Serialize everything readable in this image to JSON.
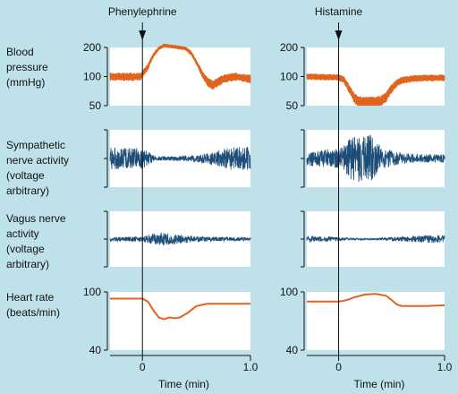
{
  "figure": {
    "background": "#bfe2ea",
    "panel_background": "#ffffff",
    "pressure_color": "#e0641e",
    "nerve_color": "#1c4e78",
    "heart_color": "#e0641e"
  },
  "chart_data": {
    "type": "line",
    "drugs": [
      "Phenylephrine",
      "Histamine"
    ],
    "row_labels": [
      [
        "Blood",
        "pressure",
        "(mmHg)"
      ],
      [
        "Sympathetic",
        "nerve activity",
        "(voltage",
        "arbitrary)"
      ],
      [
        "Vagus nerve",
        "activity",
        "(voltage",
        "arbitrary)"
      ],
      [
        "Heart rate",
        "(beats/min)"
      ]
    ],
    "xlabel": "Time (min)",
    "x_ticks": [
      {
        "value": 0,
        "label": "0"
      },
      {
        "value": 1.0,
        "label": "1.0"
      }
    ],
    "xlim": [
      -0.3,
      1.0
    ],
    "injection_time": 0,
    "pressure_ticks": [
      {
        "value": 200,
        "label": "200"
      },
      {
        "value": 100,
        "label": "100"
      },
      {
        "value": 50,
        "label": "50"
      }
    ],
    "pressure_ylim": [
      50,
      200
    ],
    "pressure_scale": "log",
    "heart_rate_ticks": [
      {
        "value": 100,
        "label": "100"
      },
      {
        "value": 40,
        "label": "40"
      }
    ],
    "heart_rate_ylim": [
      40,
      100
    ],
    "panels": [
      {
        "drug": "Phenylephrine",
        "blood_pressure": [
          [
            -0.3,
            100
          ],
          [
            -0.02,
            100
          ],
          [
            0.05,
            125
          ],
          [
            0.1,
            165
          ],
          [
            0.15,
            195
          ],
          [
            0.2,
            210
          ],
          [
            0.3,
            203
          ],
          [
            0.4,
            195
          ],
          [
            0.45,
            175
          ],
          [
            0.5,
            140
          ],
          [
            0.55,
            108
          ],
          [
            0.6,
            88
          ],
          [
            0.65,
            82
          ],
          [
            0.75,
            95
          ],
          [
            0.85,
            100
          ],
          [
            1.0,
            95
          ]
        ],
        "blood_pressure_band": 10,
        "sympathetic_activity": [
          [
            -0.3,
            0.42
          ],
          [
            0,
            0.38
          ],
          [
            0.05,
            0.28
          ],
          [
            0.1,
            0.12
          ],
          [
            0.15,
            0.08
          ],
          [
            0.3,
            0.08
          ],
          [
            0.4,
            0.12
          ],
          [
            0.5,
            0.12
          ],
          [
            0.6,
            0.2
          ],
          [
            0.7,
            0.3
          ],
          [
            0.8,
            0.42
          ],
          [
            1.0,
            0.45
          ]
        ],
        "vagus_activity": [
          [
            -0.3,
            0.08
          ],
          [
            0,
            0.1
          ],
          [
            0.05,
            0.16
          ],
          [
            0.1,
            0.22
          ],
          [
            0.2,
            0.24
          ],
          [
            0.3,
            0.2
          ],
          [
            0.4,
            0.14
          ],
          [
            0.5,
            0.12
          ],
          [
            0.6,
            0.1
          ],
          [
            0.7,
            0.08
          ],
          [
            1.0,
            0.07
          ]
        ],
        "heart_rate": [
          [
            -0.3,
            90
          ],
          [
            0,
            90
          ],
          [
            0.05,
            86
          ],
          [
            0.1,
            75
          ],
          [
            0.15,
            67
          ],
          [
            0.2,
            65
          ],
          [
            0.25,
            67
          ],
          [
            0.3,
            66
          ],
          [
            0.35,
            67
          ],
          [
            0.42,
            72
          ],
          [
            0.5,
            80
          ],
          [
            0.6,
            83
          ],
          [
            0.8,
            83
          ],
          [
            1.0,
            83
          ]
        ]
      },
      {
        "drug": "Histamine",
        "blood_pressure": [
          [
            -0.3,
            100
          ],
          [
            0,
            98
          ],
          [
            0.05,
            93
          ],
          [
            0.1,
            75
          ],
          [
            0.15,
            60
          ],
          [
            0.2,
            55
          ],
          [
            0.3,
            54
          ],
          [
            0.4,
            56
          ],
          [
            0.45,
            62
          ],
          [
            0.5,
            75
          ],
          [
            0.55,
            86
          ],
          [
            0.6,
            92
          ],
          [
            0.7,
            95
          ],
          [
            0.8,
            97
          ],
          [
            1.0,
            97
          ]
        ],
        "blood_pressure_band": 8,
        "sympathetic_activity": [
          [
            -0.3,
            0.3
          ],
          [
            0,
            0.35
          ],
          [
            0.05,
            0.5
          ],
          [
            0.1,
            0.7
          ],
          [
            0.15,
            0.95
          ],
          [
            0.2,
            0.85
          ],
          [
            0.25,
            0.8
          ],
          [
            0.3,
            0.9
          ],
          [
            0.35,
            0.65
          ],
          [
            0.4,
            0.45
          ],
          [
            0.5,
            0.3
          ],
          [
            0.6,
            0.22
          ],
          [
            0.7,
            0.18
          ],
          [
            1.0,
            0.15
          ]
        ],
        "vagus_activity": [
          [
            -0.3,
            0.12
          ],
          [
            0,
            0.08
          ],
          [
            0.1,
            0.04
          ],
          [
            0.2,
            0.03
          ],
          [
            0.3,
            0.03
          ],
          [
            0.4,
            0.05
          ],
          [
            0.6,
            0.1
          ],
          [
            0.8,
            0.14
          ],
          [
            1.0,
            0.16
          ]
        ],
        "heart_rate": [
          [
            -0.3,
            86
          ],
          [
            0,
            86
          ],
          [
            0.05,
            87
          ],
          [
            0.1,
            89
          ],
          [
            0.15,
            92
          ],
          [
            0.25,
            96
          ],
          [
            0.35,
            97
          ],
          [
            0.45,
            94
          ],
          [
            0.5,
            88
          ],
          [
            0.55,
            82
          ],
          [
            0.6,
            80
          ],
          [
            0.8,
            80
          ],
          [
            1.0,
            81
          ]
        ]
      }
    ]
  }
}
